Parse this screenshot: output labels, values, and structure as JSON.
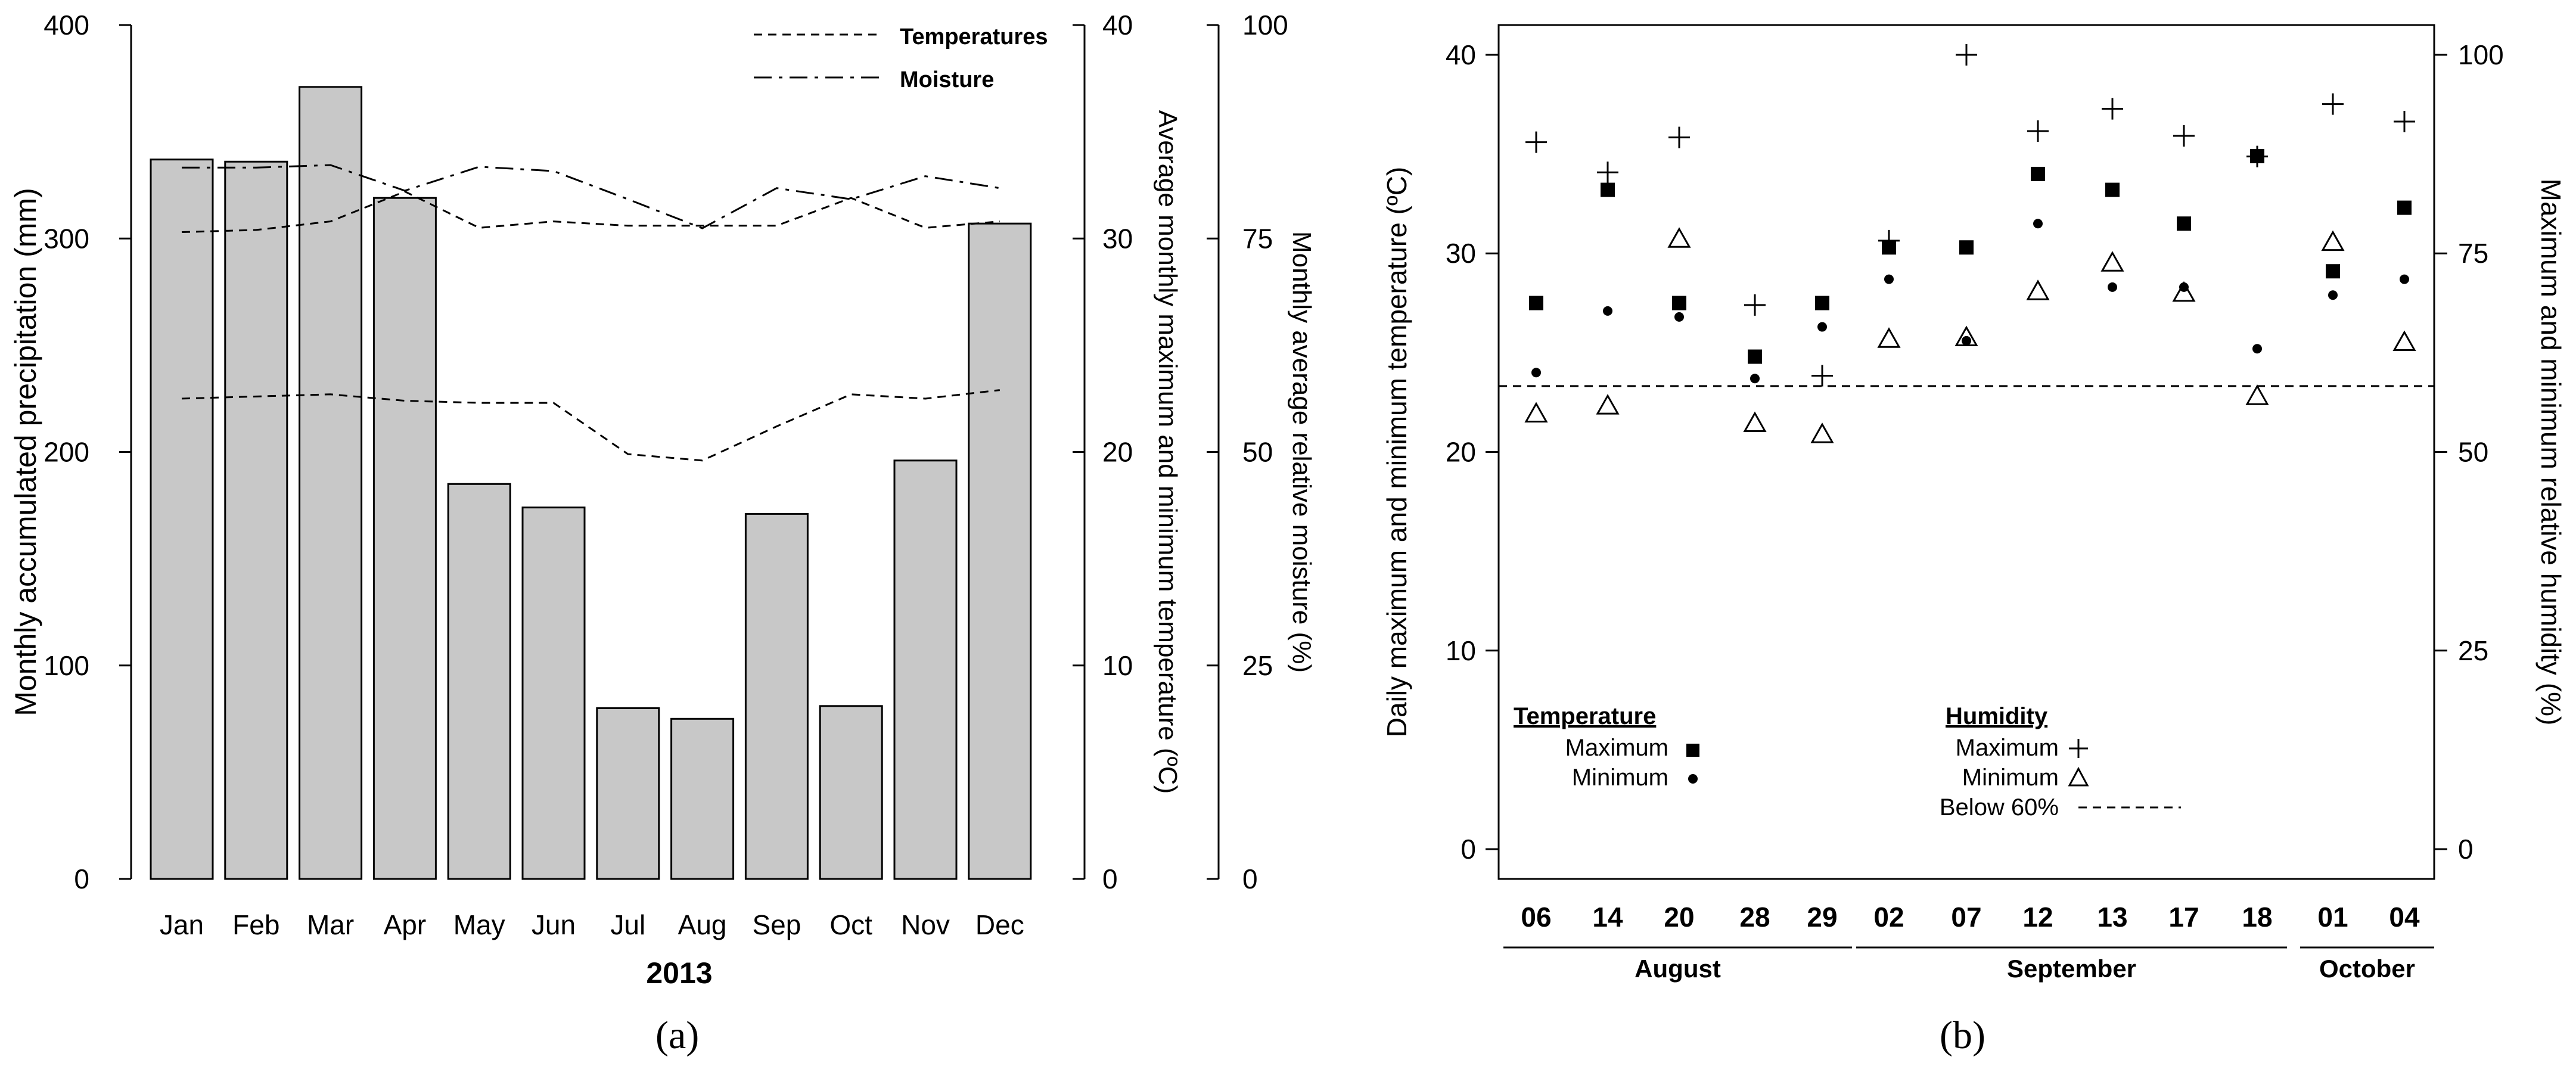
{
  "colors": {
    "bar_fill": "#c8c8c8",
    "ink": "#000000",
    "background": "#ffffff"
  },
  "panel_labels": {
    "a": "(a)",
    "b": "(b)"
  },
  "chart_data": [
    {
      "type": "bar",
      "panel": "a",
      "categories": [
        "Jan",
        "Feb",
        "Mar",
        "Apr",
        "May",
        "Jun",
        "Jul",
        "Aug",
        "Sep",
        "Oct",
        "Nov",
        "Dec"
      ],
      "values": [
        337,
        336,
        371,
        319,
        185,
        174,
        80,
        75,
        171,
        81,
        196,
        307
      ],
      "xlabel": "2013",
      "ylabel": "Monthly accumulated precipitation (mm)",
      "ylim": [
        0,
        400
      ],
      "yticks": [
        "0",
        "100",
        "200",
        "300",
        "400"
      ],
      "temperature_axis": {
        "label": "Average monthly maximum and minimum temperature (ºC)",
        "lim": [
          0,
          40
        ],
        "ticks": [
          "0",
          "10",
          "20",
          "30",
          "40"
        ]
      },
      "moisture_axis": {
        "label": "Monthly average relative moisture (%)",
        "lim": [
          0,
          100
        ],
        "ticks": [
          "0",
          "25",
          "50",
          "75",
          "100"
        ]
      },
      "legend": {
        "placement": "top-right",
        "entries": [
          "Temperatures",
          "Moisture"
        ]
      },
      "series": [
        {
          "name": "Maximum temperature",
          "style": "dashed",
          "axis": "temperature",
          "values": [
            30.3,
            30.4,
            30.8,
            32.2,
            30.5,
            30.8,
            30.6,
            30.6,
            30.6,
            31.9,
            30.5,
            30.8
          ]
        },
        {
          "name": "Minimum temperature",
          "style": "dashed",
          "axis": "temperature",
          "values": [
            22.5,
            22.6,
            22.7,
            22.4,
            22.3,
            22.3,
            19.9,
            19.6,
            21.2,
            22.7,
            22.5,
            22.9
          ]
        },
        {
          "name": "Moisture",
          "style": "dashdot",
          "axis": "moisture",
          "values": [
            83.3,
            83.3,
            83.6,
            80.6,
            83.4,
            82.9,
            79.6,
            76.2,
            80.9,
            79.6,
            82.3,
            80.9
          ]
        }
      ]
    },
    {
      "type": "scatter",
      "panel": "b",
      "categories": [
        "06",
        "14",
        "20",
        "28",
        "29",
        "02",
        "07",
        "12",
        "13",
        "17",
        "18",
        "01",
        "04"
      ],
      "months": [
        {
          "name": "August",
          "span": [
            0,
            4
          ]
        },
        {
          "name": "September",
          "span": [
            5,
            10
          ]
        },
        {
          "name": "October",
          "span": [
            11,
            12
          ]
        }
      ],
      "ylabel": "Daily maximum and minimum temperature (ºC)",
      "ylim": [
        -1.5,
        41.5
      ],
      "yticks": [
        "0",
        "10",
        "20",
        "30",
        "40"
      ],
      "humidity_axis": {
        "label": "Maximum and minimum relative humidity (%)",
        "lim": [
          -3.75,
          103.75
        ],
        "ticks": [
          "0",
          "25",
          "50",
          "75",
          "100"
        ]
      },
      "temp_max": [
        27.5,
        33.2,
        27.5,
        24.8,
        27.5,
        30.3,
        30.3,
        34.0,
        33.2,
        31.5,
        34.9,
        29.1,
        32.3
      ],
      "temp_min": [
        24.0,
        27.1,
        26.8,
        23.7,
        26.3,
        28.7,
        25.6,
        31.5,
        28.3,
        28.3,
        25.2,
        27.9,
        28.7
      ],
      "humidity_max": [
        89.0,
        85.2,
        89.6,
        68.5,
        59.6,
        76.6,
        100.0,
        90.4,
        93.2,
        89.8,
        87.2,
        93.8,
        91.6
      ],
      "humidity_min": [
        54.8,
        55.8,
        76.8,
        53.6,
        52.2,
        64.2,
        64.4,
        70.2,
        73.8,
        70.0,
        57.0,
        76.4,
        63.8
      ],
      "threshold_humidity": 58.3,
      "legend": {
        "temperature_title": "Temperature",
        "humidity_title": "Humidity",
        "maximum": "Maximum",
        "minimum": "Minimum",
        "below": "Below 60%"
      }
    }
  ]
}
